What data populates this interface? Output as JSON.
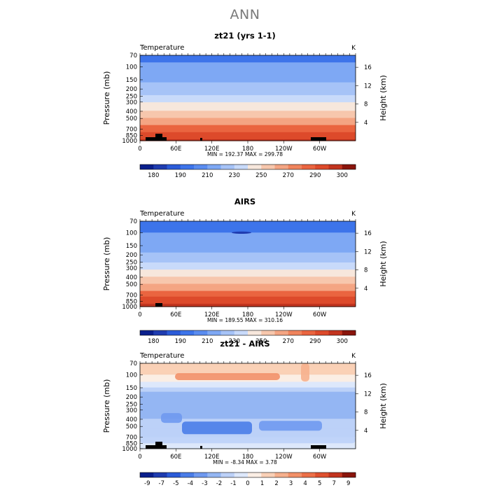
{
  "page": {
    "title": "ANN"
  },
  "panels": [
    {
      "title": "zt21 (yrs 1-1)",
      "variable_label": "Temperature",
      "units": "K",
      "stats": "MIN = 192.37   MAX = 299.78",
      "colorbar_labels": [
        "180",
        "190",
        "210",
        "230",
        "250",
        "270",
        "290",
        "300"
      ]
    },
    {
      "title": "AIRS",
      "variable_label": "Temperature",
      "units": "K",
      "stats": "MIN = 189.55   MAX = 310.16",
      "colorbar_labels": [
        "180",
        "190",
        "210",
        "230",
        "250",
        "270",
        "290",
        "300"
      ]
    },
    {
      "title": "zt21 - AIRS",
      "variable_label": "Temperature",
      "units": "K",
      "stats": "MIN =  -8.34   MAX =   3.78",
      "colorbar_labels": [
        "-9",
        "-7",
        "-5",
        "-4",
        "-3",
        "-2",
        "-1",
        "0",
        "1",
        "2",
        "3",
        "4",
        "5",
        "7",
        "9"
      ]
    }
  ],
  "axes": {
    "ylabel_left": "Pressure (mb)",
    "ylabel_right": "Height (km)",
    "pressure_ticks": [
      "70",
      "100",
      "150",
      "200",
      "250",
      "300",
      "400",
      "500",
      "700",
      "850",
      "1000"
    ],
    "height_ticks": [
      "16",
      "12",
      "8",
      "4"
    ],
    "x_ticks": [
      "0",
      "60E",
      "120E",
      "180",
      "120W",
      "60W"
    ]
  },
  "colors": {
    "temp_scale": [
      "#0a1f8c",
      "#1f3cb0",
      "#2b5bd8",
      "#3d74ea",
      "#5a8cf0",
      "#7ea8f4",
      "#a6c3f7",
      "#c8dafa",
      "#f7e7dc",
      "#f7c7ad",
      "#f4a583",
      "#f0845d",
      "#ea6540",
      "#dd4a2b",
      "#c2341f",
      "#8a150c"
    ],
    "diff_scale": [
      "#0a1f8c",
      "#1f3cb0",
      "#2b5bd8",
      "#4a7de8",
      "#6f99ef",
      "#94b6f3",
      "#bcd1f8",
      "#dde8fb",
      "#fbeee4",
      "#f9d0b6",
      "#f6b08d",
      "#f29068",
      "#ec7048",
      "#de502f",
      "#c2341f",
      "#8a150c"
    ],
    "terrain": "#000000"
  },
  "chart_data": [
    {
      "type": "heatmap",
      "title": "zt21 (yrs 1-1)",
      "variable": "Temperature",
      "units": "K",
      "xlabel": "",
      "ylabel": "Pressure (mb)",
      "ylabel_right": "Height (km)",
      "x_range": [
        0,
        360
      ],
      "pressure_levels": [
        70,
        100,
        150,
        200,
        250,
        300,
        400,
        500,
        700,
        850,
        1000
      ],
      "zonal_mean_profile": [
        206,
        212,
        218,
        224,
        231,
        239,
        250,
        260,
        276,
        284,
        292
      ],
      "min": 192.37,
      "max": 299.78,
      "contour_levels": [
        180,
        190,
        200,
        210,
        220,
        230,
        240,
        250,
        260,
        270,
        280,
        290,
        300
      ]
    },
    {
      "type": "heatmap",
      "title": "AIRS",
      "variable": "Temperature",
      "units": "K",
      "xlabel": "",
      "ylabel": "Pressure (mb)",
      "ylabel_right": "Height (km)",
      "x_range": [
        0,
        360
      ],
      "pressure_levels": [
        70,
        100,
        150,
        200,
        250,
        300,
        400,
        500,
        700,
        850,
        1000
      ],
      "zonal_mean_profile": [
        206,
        210,
        216,
        222,
        230,
        238,
        250,
        260,
        277,
        286,
        295
      ],
      "min": 189.55,
      "max": 310.16,
      "contour_levels": [
        180,
        190,
        200,
        210,
        220,
        230,
        240,
        250,
        260,
        270,
        280,
        290,
        300
      ]
    },
    {
      "type": "heatmap",
      "title": "zt21 - AIRS",
      "variable": "Temperature",
      "units": "K",
      "xlabel": "",
      "ylabel": "Pressure (mb)",
      "ylabel_right": "Height (km)",
      "x_range": [
        0,
        360
      ],
      "pressure_levels": [
        70,
        100,
        150,
        200,
        250,
        300,
        400,
        500,
        700,
        850,
        1000
      ],
      "zonal_mean_profile": [
        2,
        1,
        -1,
        -3,
        -3,
        -3,
        -2,
        -2,
        -1,
        -1,
        0
      ],
      "min": -8.34,
      "max": 3.78,
      "contour_levels": [
        -9,
        -7,
        -5,
        -4,
        -3,
        -2,
        -1,
        0,
        1,
        2,
        3,
        4,
        5,
        7,
        9
      ]
    }
  ]
}
